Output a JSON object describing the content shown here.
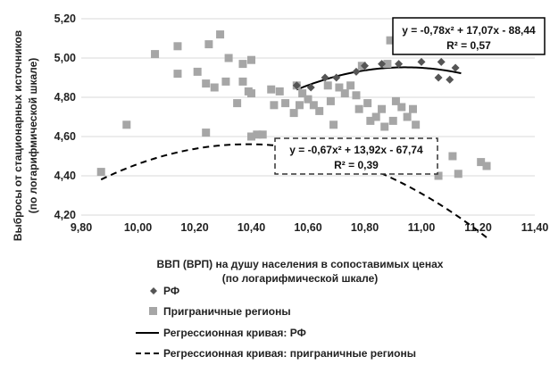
{
  "chart_data": {
    "type": "scatter",
    "xlabel_line1": "ВВП (ВРП) на душу населения в сопоставимых ценах",
    "xlabel_line2": "(по логарифмической шкале)",
    "ylabel_line1": "Выбросы от стационарных источников",
    "ylabel_line2": "(по логарифмической шкале)",
    "xlim": [
      9.8,
      11.4
    ],
    "ylim": [
      4.2,
      5.2
    ],
    "x_ticks": [
      "9,80",
      "10,00",
      "10,20",
      "10,40",
      "10,60",
      "10,80",
      "11,00",
      "11,20",
      "11,40"
    ],
    "y_ticks": [
      "4,20",
      "4,40",
      "4,60",
      "4,80",
      "5,00",
      "5,20"
    ],
    "grid": "horizontal",
    "legend_position": "bottom-left",
    "series": [
      {
        "name": "РФ",
        "marker": "diamond",
        "color": "#555555",
        "points": [
          [
            10.56,
            4.86
          ],
          [
            10.61,
            4.85
          ],
          [
            10.66,
            4.9
          ],
          [
            10.7,
            4.9
          ],
          [
            10.77,
            4.93
          ],
          [
            10.8,
            4.96
          ],
          [
            10.86,
            4.97
          ],
          [
            10.92,
            4.97
          ],
          [
            11.0,
            4.98
          ],
          [
            11.07,
            4.98
          ],
          [
            11.06,
            4.9
          ],
          [
            11.1,
            4.89
          ],
          [
            11.12,
            4.95
          ]
        ]
      },
      {
        "name": "Приграничные регионы",
        "marker": "square",
        "color": "#a6a6a6",
        "points": [
          [
            9.87,
            4.42
          ],
          [
            9.96,
            4.66
          ],
          [
            10.06,
            5.02
          ],
          [
            10.14,
            5.06
          ],
          [
            10.14,
            4.92
          ],
          [
            10.21,
            4.93
          ],
          [
            10.25,
            5.07
          ],
          [
            10.29,
            5.12
          ],
          [
            10.32,
            5.0
          ],
          [
            10.37,
            4.97
          ],
          [
            10.4,
            4.99
          ],
          [
            10.27,
            4.85
          ],
          [
            10.24,
            4.87
          ],
          [
            10.31,
            4.88
          ],
          [
            10.37,
            4.88
          ],
          [
            10.39,
            4.83
          ],
          [
            10.4,
            4.82
          ],
          [
            10.35,
            4.77
          ],
          [
            10.24,
            4.62
          ],
          [
            10.4,
            4.6
          ],
          [
            10.42,
            4.61
          ],
          [
            10.44,
            4.61
          ],
          [
            10.47,
            4.84
          ],
          [
            10.48,
            4.76
          ],
          [
            10.5,
            4.83
          ],
          [
            10.52,
            4.77
          ],
          [
            10.55,
            4.72
          ],
          [
            10.56,
            4.86
          ],
          [
            10.57,
            4.76
          ],
          [
            10.58,
            4.82
          ],
          [
            10.6,
            4.79
          ],
          [
            10.62,
            4.76
          ],
          [
            10.64,
            4.73
          ],
          [
            10.67,
            4.86
          ],
          [
            10.68,
            4.78
          ],
          [
            10.69,
            4.66
          ],
          [
            10.71,
            4.85
          ],
          [
            10.73,
            4.82
          ],
          [
            10.75,
            4.86
          ],
          [
            10.77,
            4.81
          ],
          [
            10.78,
            4.74
          ],
          [
            10.79,
            4.96
          ],
          [
            10.81,
            4.77
          ],
          [
            10.82,
            4.68
          ],
          [
            10.84,
            4.7
          ],
          [
            10.86,
            4.74
          ],
          [
            10.87,
            4.65
          ],
          [
            10.88,
            4.97
          ],
          [
            10.89,
            5.09
          ],
          [
            10.9,
            4.68
          ],
          [
            10.91,
            4.78
          ],
          [
            10.93,
            4.75
          ],
          [
            10.95,
            4.7
          ],
          [
            10.97,
            4.74
          ],
          [
            10.98,
            4.66
          ],
          [
            11.04,
            4.52
          ],
          [
            11.06,
            4.4
          ],
          [
            11.11,
            4.5
          ],
          [
            11.13,
            4.41
          ],
          [
            11.21,
            4.47
          ],
          [
            11.23,
            4.45
          ]
        ]
      }
    ],
    "trendlines": [
      {
        "name": "Регрессионная кривая: РФ",
        "style": "solid",
        "coef": [
          -0.78,
          17.07,
          -88.44
        ],
        "x_range": [
          10.56,
          11.14
        ],
        "equation": "y = -0,78x² + 17,07x - 88,44",
        "r2": "R² = 0,57"
      },
      {
        "name": "Регрессионная кривая: приграничные регионы",
        "style": "dashed",
        "coef": [
          -0.67,
          13.92,
          -67.74
        ],
        "x_range": [
          9.87,
          11.24
        ],
        "equation": "y = -0,67x² + 13,92x - 67,74",
        "r2": "R² = 0,39"
      }
    ],
    "legend": [
      {
        "symbol": "diamond",
        "label": "РФ"
      },
      {
        "symbol": "square",
        "label": "Приграничные регионы"
      },
      {
        "symbol": "solid-line",
        "label": "Регрессионная кривая: РФ"
      },
      {
        "symbol": "dashed-line",
        "label": "Регрессионная кривая: приграничные регионы"
      }
    ]
  }
}
